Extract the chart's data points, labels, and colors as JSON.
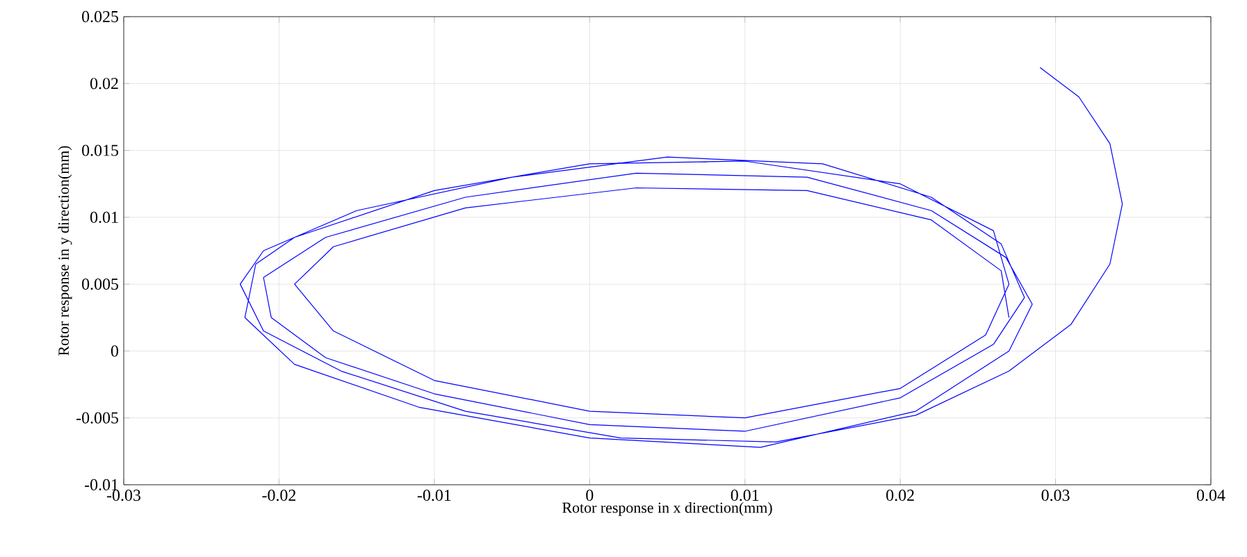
{
  "chart_data": {
    "type": "line",
    "xlabel": "Rotor response in x direction(mm)",
    "ylabel": "Rotor response in y direction(mm)",
    "xlim": [
      -0.03,
      0.04
    ],
    "xticks": [
      -0.03,
      -0.02,
      -0.01,
      0,
      0.01,
      0.02,
      0.03,
      0.04
    ],
    "ylim": [
      -0.01,
      0.025
    ],
    "yticks": [
      -0.01,
      -0.005,
      0,
      0.005,
      0.01,
      0.015,
      0.02,
      0.025
    ],
    "grid": true,
    "marker": "none",
    "line_style": "solid",
    "series": [
      {
        "color": "#0000ff",
        "x": [
          0.029,
          0.0315,
          0.0335,
          0.0343,
          0.0335,
          0.031,
          0.027,
          0.021,
          0.012,
          0.002,
          -0.008,
          -0.016,
          -0.021,
          -0.0225,
          -0.021,
          -0.015,
          -0.005,
          0.005,
          0.015,
          0.022,
          0.0265,
          0.028,
          0.026,
          0.02,
          0.01,
          0,
          -0.01,
          -0.017,
          -0.0205,
          -0.021,
          -0.017,
          -0.008,
          0.003,
          0.014,
          0.022,
          0.0268,
          0.0285,
          0.027,
          0.021,
          0.011,
          0,
          -0.011,
          -0.019,
          -0.0222,
          -0.0215,
          -0.019,
          -0.01,
          0,
          0.01,
          0.02,
          0.026,
          0.027,
          0.0255,
          0.02,
          0.01,
          0,
          -0.01,
          -0.0165,
          -0.019,
          -0.0165,
          -0.008,
          0.003,
          0.014,
          0.022,
          0.0265,
          0.027
        ],
        "values": [
          0.0212,
          0.019,
          0.0155,
          0.011,
          0.0065,
          0.002,
          -0.0015,
          -0.0048,
          -0.0068,
          -0.0065,
          -0.0045,
          -0.0015,
          0.0015,
          0.005,
          0.0075,
          0.0105,
          0.013,
          0.0145,
          0.014,
          0.0115,
          0.008,
          0.004,
          0.0005,
          -0.0035,
          -0.006,
          -0.0055,
          -0.0032,
          -0.0005,
          0.0025,
          0.0055,
          0.0085,
          0.0115,
          0.0133,
          0.013,
          0.0105,
          0.007,
          0.0035,
          0,
          -0.0045,
          -0.0072,
          -0.0065,
          -0.0042,
          -0.001,
          0.0025,
          0.0065,
          0.0085,
          0.012,
          0.014,
          0.0142,
          0.0125,
          0.009,
          0.005,
          0.0012,
          -0.0028,
          -0.005,
          -0.0045,
          -0.0022,
          0.0015,
          0.005,
          0.0078,
          0.0107,
          0.0122,
          0.012,
          0.0098,
          0.006,
          0.0025
        ]
      }
    ]
  }
}
